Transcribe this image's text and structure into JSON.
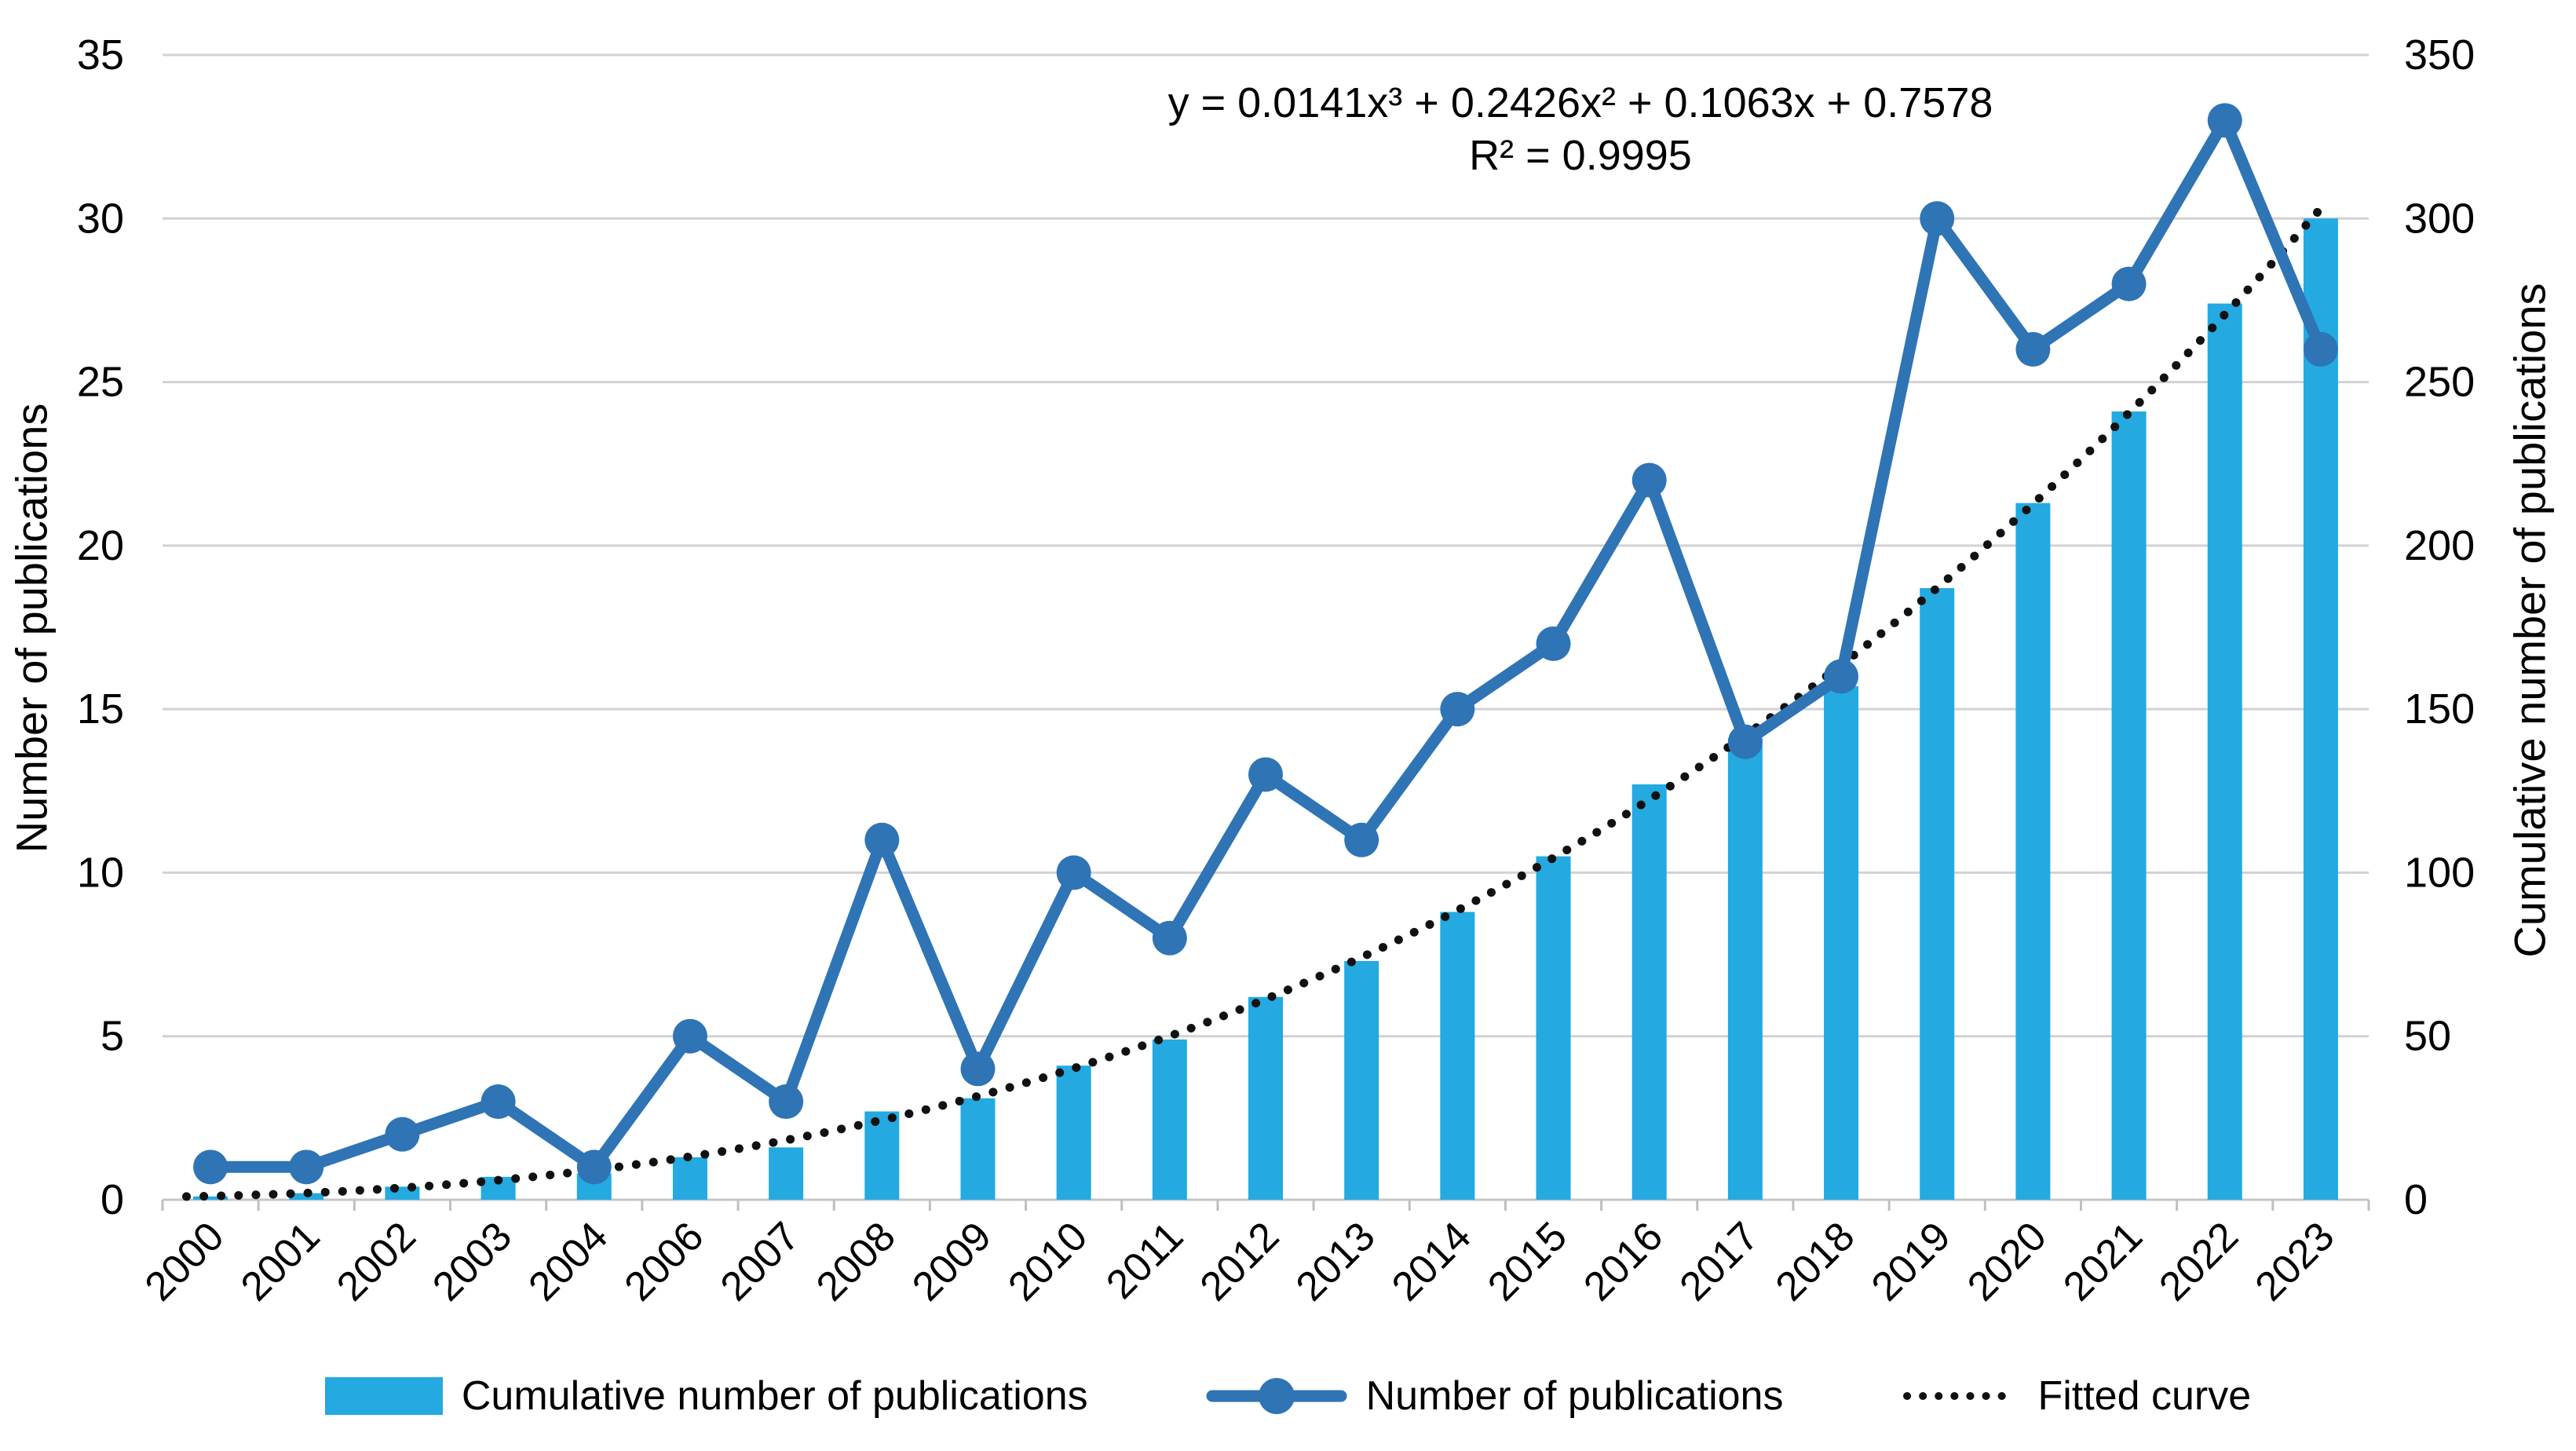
{
  "chart_data": {
    "type": "combo-bar-line",
    "categories": [
      "2000",
      "2001",
      "2002",
      "2003",
      "2004",
      "2006",
      "2007",
      "2008",
      "2009",
      "2010",
      "2011",
      "2012",
      "2013",
      "2014",
      "2015",
      "2016",
      "2017",
      "2018",
      "2019",
      "2020",
      "2021",
      "2022",
      "2023"
    ],
    "series": [
      {
        "name": "Cumulative number of publications",
        "type": "bar",
        "axis": "right",
        "values": [
          1,
          2,
          4,
          7,
          8,
          13,
          16,
          27,
          31,
          41,
          49,
          62,
          73,
          88,
          105,
          127,
          141,
          157,
          187,
          213,
          241,
          274,
          300
        ]
      },
      {
        "name": "Number of publications",
        "type": "line",
        "axis": "left",
        "values": [
          1,
          1,
          2,
          3,
          1,
          5,
          3,
          11,
          4,
          10,
          8,
          13,
          11,
          15,
          17,
          22,
          14,
          16,
          30,
          26,
          28,
          33,
          26
        ]
      },
      {
        "name": "Fitted curve",
        "type": "dotted-curve",
        "axis": "right",
        "poly_coefficients": [
          0.0141,
          0.2426,
          0.1063,
          0.7578
        ]
      }
    ],
    "left_axis": {
      "label": "Number of publications",
      "min": 0,
      "max": 35,
      "step": 5,
      "ticks": [
        "0",
        "5",
        "10",
        "15",
        "20",
        "25",
        "30",
        "35"
      ]
    },
    "right_axis": {
      "label": "Cumulative number of publications",
      "min": 0,
      "max": 350,
      "step": 50,
      "ticks": [
        "0",
        "50",
        "100",
        "150",
        "200",
        "250",
        "300",
        "350"
      ]
    },
    "annotation": {
      "equation": "y = 0.0141x³ + 0.2426x² + 0.1063x + 0.7578",
      "r_squared": "R² = 0.9995"
    },
    "legend": [
      {
        "label": "Cumulative number of publications",
        "swatch": "bar"
      },
      {
        "label": "Number of publications",
        "swatch": "line-marker"
      },
      {
        "label": "Fitted curve",
        "swatch": "dotted-line"
      }
    ],
    "legend_position": "bottom",
    "grid": true
  },
  "colors": {
    "bar": "#24A9E1",
    "line": "#2F74B5",
    "fitted": "#111111",
    "grid": "#D2D2D2",
    "axis": "#BFBFBF",
    "text": "#000000"
  }
}
